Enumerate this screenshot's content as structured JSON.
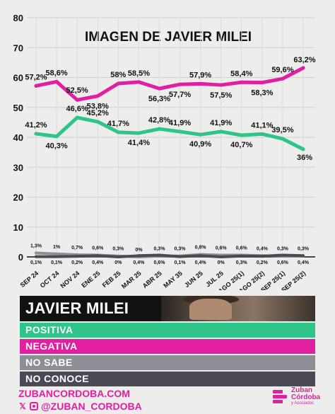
{
  "chart_data": {
    "type": "line",
    "title": "IMAGEN DE JAVIER MILEI",
    "categories": [
      "SEP 24",
      "OCT 24",
      "NOV 24",
      "ENE 25",
      "FEB 25",
      "MAR 25",
      "ABR 25",
      "MAY 35",
      "JUN 25",
      "JUL 25",
      "AGO 25(1)",
      "AGO 25(2)",
      "SEP 25(1)",
      "SEP 25(2)"
    ],
    "ylim": [
      0,
      80
    ],
    "yticks": [
      0,
      10,
      20,
      30,
      40,
      50,
      60,
      70,
      80
    ],
    "ytick_labels": [
      "0",
      "10",
      "20",
      "30",
      "40",
      "50",
      "60",
      "70",
      "80"
    ],
    "grid": true,
    "series": [
      {
        "name": "NEGATIVA",
        "color": "#e020a0",
        "values": [
          57.2,
          58.6,
          52.5,
          53.8,
          58,
          58.5,
          56.3,
          57.7,
          57.9,
          57.5,
          58.4,
          58.3,
          59.6,
          63.2
        ],
        "labels": [
          "57,2%",
          "58,6%",
          "52,5%",
          "53,8%",
          "58%",
          "58,5%",
          "56,3%",
          "57,7%",
          "57,9%",
          "57,5%",
          "58,4%",
          "58,3%",
          "59,6%",
          "63,2%"
        ]
      },
      {
        "name": "POSITIVA",
        "color": "#2fc48a",
        "values": [
          41.2,
          40.3,
          46.6,
          45.2,
          41.7,
          41.4,
          42.8,
          41.9,
          40.9,
          41.9,
          40.7,
          41.1,
          39.5,
          36
        ],
        "labels": [
          "41,2%",
          "40,3%",
          "46,6%",
          "45,2%",
          "41,7%",
          "41,4%",
          "42,8%",
          "41,9%",
          "40,9%",
          "41,9%",
          "40,7%",
          "41,1%",
          "39,5%",
          "36%"
        ]
      },
      {
        "name": "NO SABE",
        "color": "#8e8e97",
        "values": [
          1.3,
          1,
          0.7,
          0.6,
          0.3,
          0,
          0.3,
          0.3,
          0.8,
          0.6,
          0.6,
          0.4,
          0.3,
          0.3
        ],
        "labels": [
          "1,3%",
          "1%",
          "0,7%",
          "0,6%",
          "0,3%",
          "0%",
          "0,3%",
          "0,3%",
          "0,8%",
          "0,6%",
          "0,6%",
          "0,4%",
          "0,3%",
          "0,3%"
        ]
      },
      {
        "name": "NO CONOCE",
        "color": "#4a4a54",
        "values": [
          0.1,
          0.1,
          0.2,
          0.4,
          0,
          0.4,
          0.6,
          0.1,
          0.4,
          0,
          0.3,
          0.2,
          0.6,
          0.4
        ],
        "labels": [
          "0,1%",
          "0,1%",
          "0,2%",
          "0,4%",
          "0%",
          "0,4%",
          "0,6%",
          "0,1%",
          "0,4%",
          "0%",
          "0,3%",
          "0,2%",
          "0,6%",
          "0,4%"
        ]
      }
    ]
  },
  "legend": {
    "header": "JAVIER MILEI",
    "items": [
      {
        "label": "POSITIVA",
        "color": "#2fc48a"
      },
      {
        "label": "NEGATIVA",
        "color": "#e020a0"
      },
      {
        "label": "NO SABE",
        "color": "#8e8e97"
      },
      {
        "label": "NO CONOCE",
        "color": "#4a4a54"
      }
    ]
  },
  "footer": {
    "website": "ZUBANCORDOBA.COM",
    "handle": "@ZUBAN_CORDOBA",
    "social_icons": [
      "x-icon",
      "instagram-icon"
    ]
  },
  "brand": {
    "name_line1": "Zuban",
    "name_line2": "Córdoba",
    "tagline": "y Asociados"
  }
}
